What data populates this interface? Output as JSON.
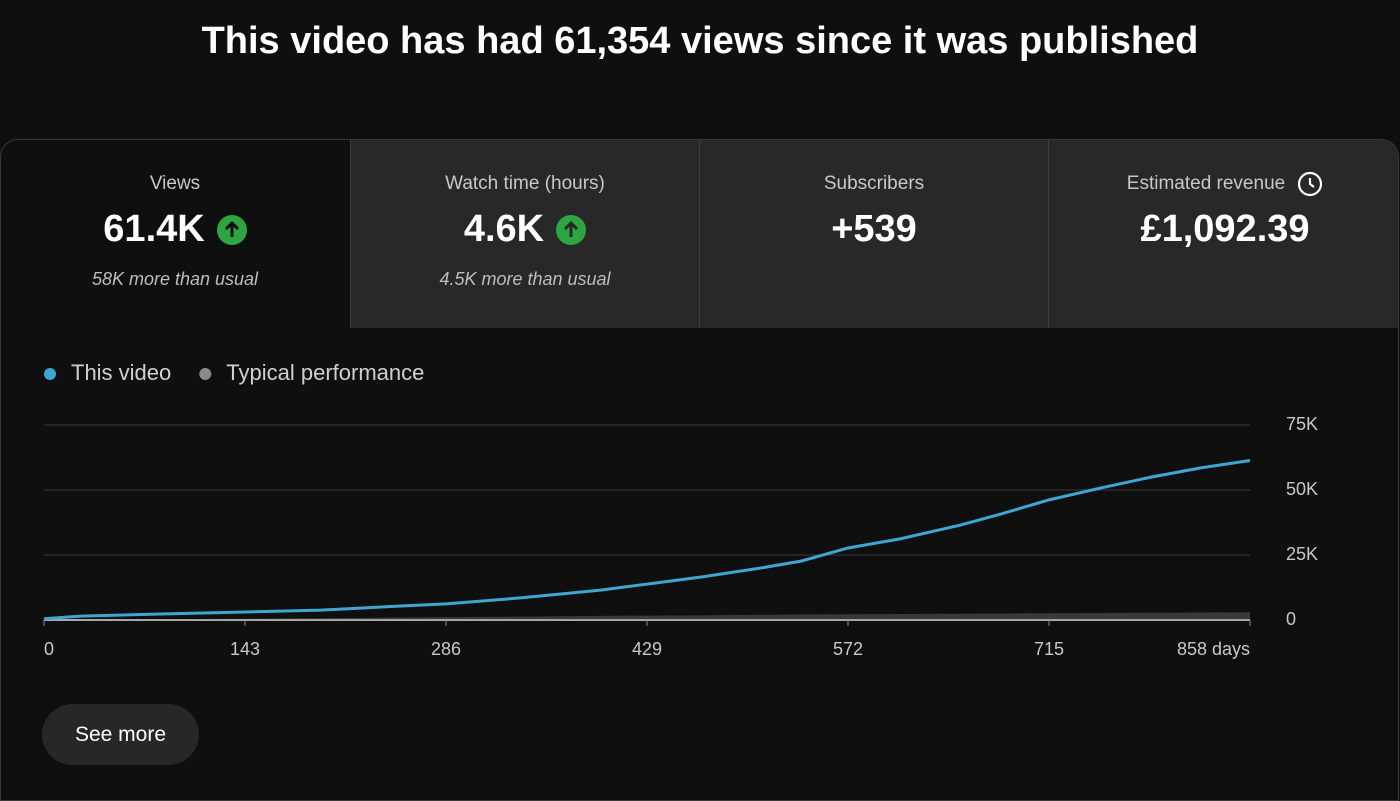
{
  "header": {
    "title": "This video has had 61,354 views since it was published"
  },
  "metrics": [
    {
      "label": "Views",
      "value": "61.4K",
      "note": "58K more than usual"
    },
    {
      "label": "Watch time (hours)",
      "value": "4.6K",
      "note": "4.5K more than usual"
    },
    {
      "label": "Subscribers",
      "value": "+539"
    },
    {
      "label": "Estimated revenue",
      "value": "£1,092.39"
    }
  ],
  "chart_data": {
    "type": "line",
    "x": [
      0,
      26,
      83,
      143,
      197,
      254,
      286,
      339,
      396,
      429,
      467,
      510,
      539,
      572,
      609,
      652,
      681,
      715,
      752,
      788,
      823,
      858
    ],
    "series": [
      {
        "name": "This video",
        "color": "#3ea6d0",
        "values": [
          500,
          1500,
          2300,
          3100,
          3800,
          5400,
          6200,
          8500,
          11500,
          13800,
          16500,
          20000,
          22700,
          27700,
          31200,
          36500,
          40800,
          46200,
          50800,
          55000,
          58500,
          61354
        ]
      },
      {
        "name": "Typical performance",
        "color": "#8a8a8a",
        "values": [
          0,
          100,
          300,
          500,
          700,
          1000,
          1100,
          1300,
          1600,
          1700,
          1800,
          2000,
          2100,
          2200,
          2300,
          2400,
          2500,
          2600,
          2700,
          2800,
          2900,
          3000
        ]
      }
    ],
    "xlim": [
      0,
      858
    ],
    "xticks": [
      0,
      143,
      286,
      429,
      572,
      715,
      {
        "value": 858,
        "label": "858 days"
      }
    ],
    "ylim": [
      0,
      75000
    ],
    "yticks": [
      0,
      {
        "value": 25000,
        "label": "25K"
      },
      {
        "value": 50000,
        "label": "50K"
      },
      {
        "value": 75000,
        "label": "75K"
      }
    ],
    "grid": true
  },
  "button": {
    "label": "See more"
  }
}
